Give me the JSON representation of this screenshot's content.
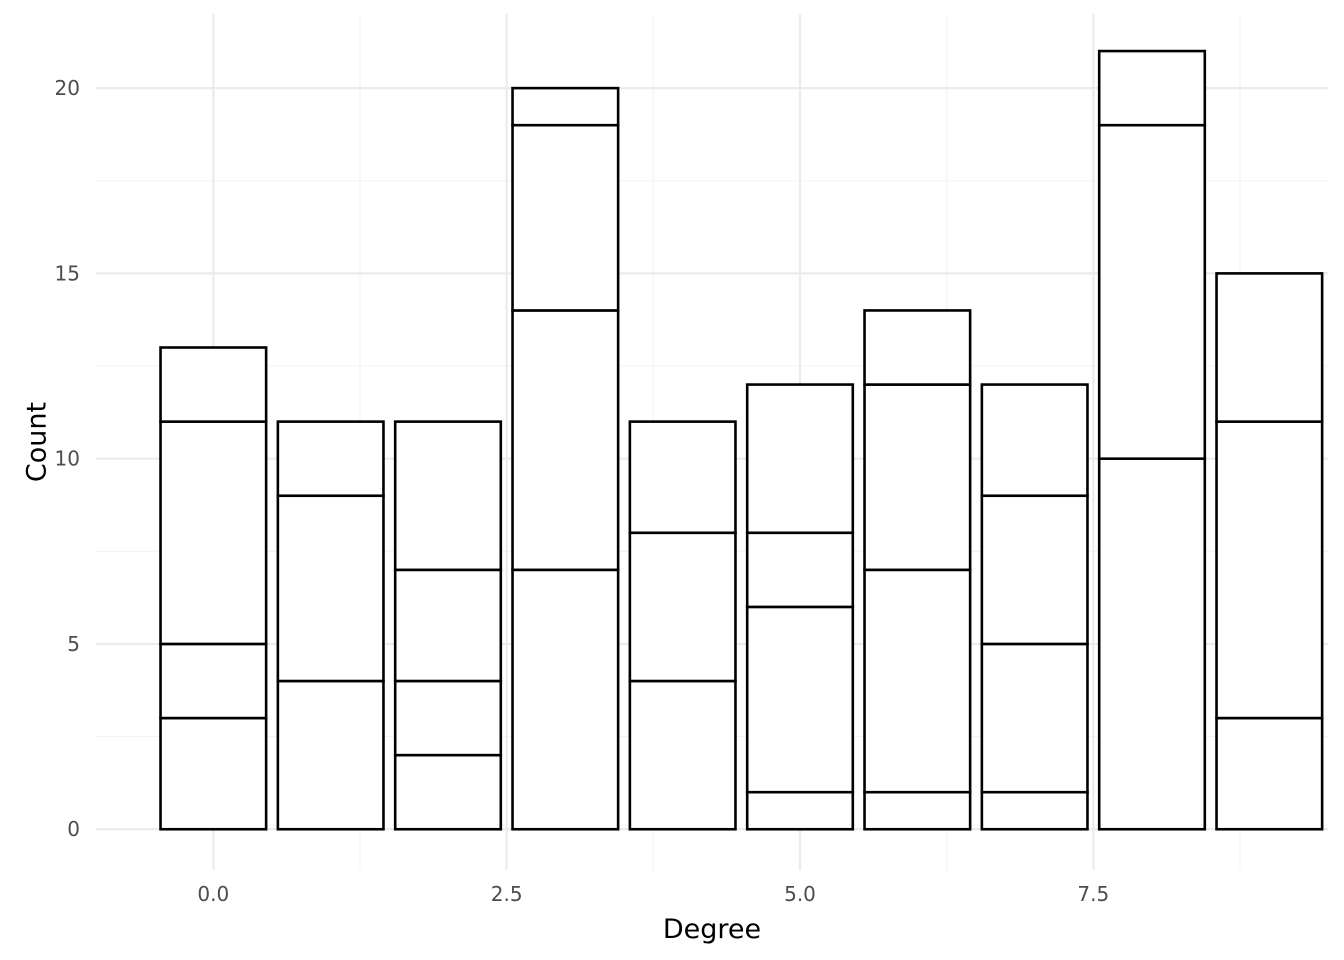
{
  "chart_data": {
    "type": "bar",
    "stacked": true,
    "fill": "#FFFFFF",
    "outline": "#000000",
    "xlabel": "Degree",
    "ylabel": "Count",
    "xlim": [
      -1,
      9.5
    ],
    "ylim": [
      -1.1,
      22
    ],
    "x_ticks": [
      0.0,
      2.5,
      5.0,
      7.5
    ],
    "x_tick_labels": [
      "0.0",
      "2.5",
      "5.0",
      "7.5"
    ],
    "y_ticks": [
      0,
      5,
      10,
      15,
      20
    ],
    "y_tick_labels": [
      "0",
      "5",
      "10",
      "15",
      "20"
    ],
    "grid": true,
    "legend": "none",
    "bar_width": 0.9,
    "bars": [
      {
        "x": 0,
        "total": 13,
        "breaks": [
          3,
          5,
          11,
          13
        ]
      },
      {
        "x": 1,
        "total": 11,
        "breaks": [
          4,
          9,
          11
        ]
      },
      {
        "x": 2,
        "total": 11,
        "breaks": [
          2,
          4,
          7,
          11
        ]
      },
      {
        "x": 3,
        "total": 20,
        "breaks": [
          7,
          14,
          19,
          20
        ]
      },
      {
        "x": 4,
        "total": 11,
        "breaks": [
          4,
          8,
          11
        ]
      },
      {
        "x": 5,
        "total": 12,
        "breaks": [
          1,
          6,
          8,
          12
        ]
      },
      {
        "x": 6,
        "total": 14,
        "breaks": [
          1,
          7,
          12,
          14
        ]
      },
      {
        "x": 7,
        "total": 12,
        "breaks": [
          1,
          5,
          9,
          12
        ]
      },
      {
        "x": 8,
        "total": 21,
        "breaks": [
          10,
          19,
          21
        ]
      },
      {
        "x": 9,
        "total": 15,
        "breaks": [
          3,
          11,
          15
        ]
      }
    ]
  }
}
